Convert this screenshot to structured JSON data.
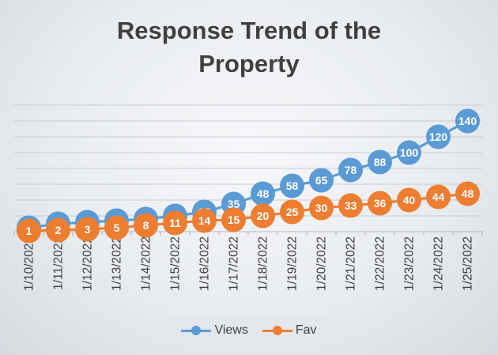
{
  "chart_data": {
    "type": "line",
    "title": "Response Trend of the Property",
    "title_lines": [
      "Response Trend of the",
      "Property"
    ],
    "categories": [
      "1/10/2022",
      "1/11/2022",
      "1/12/2022",
      "1/13/2022",
      "1/14/2022",
      "1/15/2022",
      "1/16/2022",
      "1/17/2022",
      "1/18/2022",
      "1/19/2022",
      "1/20/2022",
      "1/21/2022",
      "1/22/2022",
      "1/23/2022",
      "1/24/2022",
      "1/25/2022"
    ],
    "series": [
      {
        "name": "Views",
        "color": "#5b9bd5",
        "values": [
          5,
          10,
          12,
          14,
          16,
          20,
          25,
          35,
          48,
          58,
          65,
          78,
          88,
          100,
          120,
          140
        ]
      },
      {
        "name": "Fav",
        "color": "#ed7d31",
        "values": [
          1,
          2,
          3,
          5,
          8,
          11,
          14,
          15,
          20,
          25,
          30,
          33,
          36,
          40,
          44,
          48
        ]
      }
    ],
    "ylim": [
      0,
      160
    ],
    "grid": true,
    "data_labels": true,
    "legend_position": "bottom"
  }
}
